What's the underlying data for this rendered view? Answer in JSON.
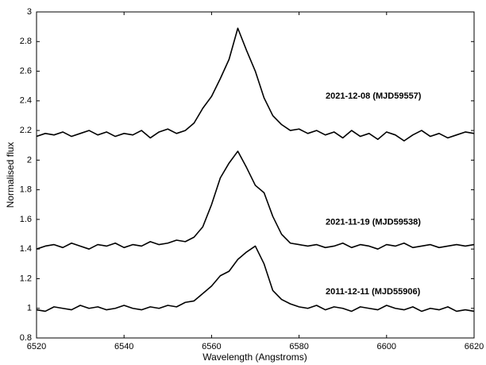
{
  "chart_data": {
    "type": "line",
    "x_label": "Wavelength (Angstroms)",
    "y_label": "Normalised flux",
    "x": [
      6520,
      6522,
      6524,
      6526,
      6528,
      6530,
      6532,
      6534,
      6536,
      6538,
      6540,
      6542,
      6544,
      6546,
      6548,
      6550,
      6552,
      6554,
      6556,
      6558,
      6560,
      6562,
      6564,
      6566,
      6568,
      6570,
      6572,
      6574,
      6576,
      6578,
      6580,
      6582,
      6584,
      6586,
      6588,
      6590,
      6592,
      6594,
      6596,
      6598,
      6600,
      6602,
      6604,
      6606,
      6608,
      6610,
      6612,
      6614,
      6616,
      6618,
      6620
    ],
    "series": [
      {
        "name": "2021-12-08 (MJD59557)",
        "color": "#000000",
        "values": [
          2.16,
          2.18,
          2.17,
          2.19,
          2.16,
          2.18,
          2.2,
          2.17,
          2.19,
          2.16,
          2.18,
          2.17,
          2.2,
          2.15,
          2.19,
          2.21,
          2.18,
          2.2,
          2.25,
          2.35,
          2.43,
          2.55,
          2.68,
          2.89,
          2.74,
          2.6,
          2.42,
          2.3,
          2.24,
          2.2,
          2.21,
          2.18,
          2.2,
          2.17,
          2.19,
          2.15,
          2.2,
          2.16,
          2.18,
          2.14,
          2.19,
          2.17,
          2.13,
          2.17,
          2.2,
          2.16,
          2.18,
          2.15,
          2.17,
          2.19,
          2.18
        ]
      },
      {
        "name": "2021-11-19 (MJD59538)",
        "color": "#000000",
        "values": [
          1.4,
          1.42,
          1.43,
          1.41,
          1.44,
          1.42,
          1.4,
          1.43,
          1.42,
          1.44,
          1.41,
          1.43,
          1.42,
          1.45,
          1.43,
          1.44,
          1.46,
          1.45,
          1.48,
          1.55,
          1.7,
          1.88,
          1.98,
          2.06,
          1.95,
          1.83,
          1.78,
          1.62,
          1.5,
          1.44,
          1.43,
          1.42,
          1.43,
          1.41,
          1.42,
          1.44,
          1.41,
          1.43,
          1.42,
          1.4,
          1.43,
          1.42,
          1.44,
          1.41,
          1.42,
          1.43,
          1.41,
          1.42,
          1.43,
          1.42,
          1.43
        ]
      },
      {
        "name": "2011-12-11 (MJD55906)",
        "color": "#000000",
        "values": [
          0.99,
          0.98,
          1.01,
          1.0,
          0.99,
          1.02,
          1.0,
          1.01,
          0.99,
          1.0,
          1.02,
          1.0,
          0.99,
          1.01,
          1.0,
          1.02,
          1.01,
          1.04,
          1.05,
          1.1,
          1.15,
          1.22,
          1.25,
          1.33,
          1.38,
          1.42,
          1.3,
          1.12,
          1.06,
          1.03,
          1.01,
          1.0,
          1.02,
          0.99,
          1.01,
          1.0,
          0.98,
          1.01,
          1.0,
          0.99,
          1.02,
          1.0,
          0.99,
          1.01,
          0.98,
          1.0,
          0.99,
          1.01,
          0.98,
          0.99,
          0.98
        ]
      }
    ],
    "xlim": [
      6520,
      6620
    ],
    "xticks": [
      6520,
      6540,
      6560,
      6580,
      6600,
      6620
    ],
    "ylim": [
      0.8,
      3
    ],
    "yticks": [
      0.8,
      1,
      1.2,
      1.4,
      1.6,
      1.8,
      2,
      2.2,
      2.4,
      2.6,
      2.8,
      3
    ],
    "grid": false
  }
}
